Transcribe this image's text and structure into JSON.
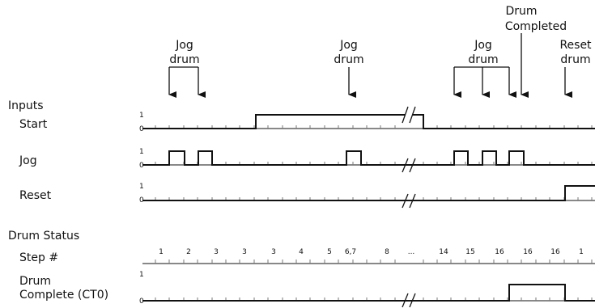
{
  "annotations": {
    "jog1": [
      "Jog",
      "drum"
    ],
    "jog2": [
      "Jog",
      "drum"
    ],
    "jog3": [
      "Jog",
      "drum"
    ],
    "drum_completed": [
      "Drum",
      "Completed"
    ],
    "reset_drum": [
      "Reset",
      "drum"
    ]
  },
  "sections": {
    "inputs": "Inputs",
    "drum_status": "Drum Status"
  },
  "signals": {
    "start": "Start",
    "jog": "Jog",
    "reset": "Reset",
    "step": "Step #",
    "drum_complete_line1": "Drum",
    "drum_complete_line2": "Complete (CT0)"
  },
  "levels": {
    "high": "1",
    "low": "0"
  },
  "steps": [
    "1",
    "2",
    "3",
    "3",
    "3",
    "4",
    "5",
    "6,7",
    "8",
    "...",
    "14",
    "15",
    "16",
    "16",
    "16",
    "1"
  ]
}
